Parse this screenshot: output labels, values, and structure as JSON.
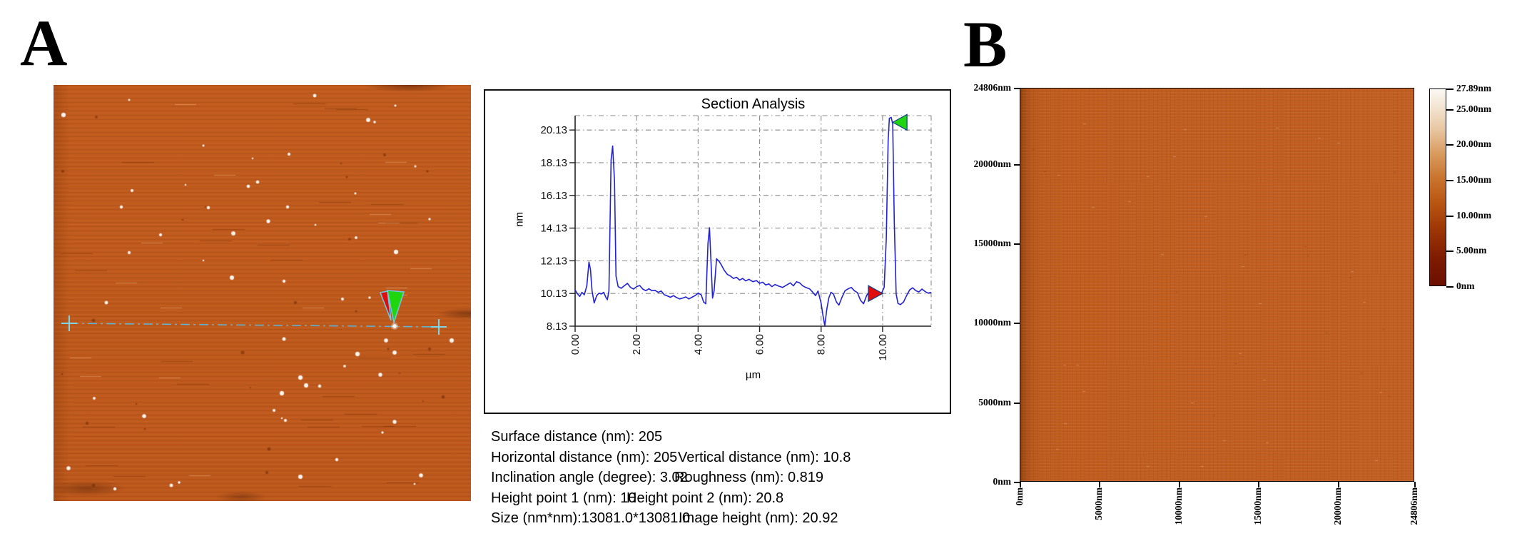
{
  "figure": {
    "panel_a_label": "A",
    "panel_b_label": "B"
  },
  "section_analysis": {
    "title": "Section Analysis",
    "ylabel": "nm",
    "xlabel": "µm",
    "y_tick_labels": [
      "20.13",
      "18.13",
      "16.13",
      "14.13",
      "12.13",
      "10.13",
      "8.13"
    ],
    "x_tick_labels": [
      "0.00",
      "2.00",
      "4.00",
      "6.00",
      "8.00",
      "10.00"
    ]
  },
  "chart_data": {
    "type": "line",
    "title": "Section Analysis",
    "xlabel": "µm",
    "ylabel": "nm",
    "xlim": [
      0,
      11.58
    ],
    "ylim": [
      8.13,
      21.01
    ],
    "x_ticks": [
      0,
      2,
      4,
      6,
      8,
      10
    ],
    "y_ticks": [
      8.13,
      10.13,
      12.13,
      14.13,
      16.13,
      18.13,
      20.13
    ],
    "grid": "dash-dot",
    "legend": "none",
    "series": [
      {
        "name": "height-profile",
        "color": "#2121d6",
        "points": [
          [
            0,
            10.35
          ],
          [
            0.08,
            10.1
          ],
          [
            0.15,
            9.95
          ],
          [
            0.22,
            10.2
          ],
          [
            0.3,
            10.05
          ],
          [
            0.38,
            10.6
          ],
          [
            0.45,
            12.05
          ],
          [
            0.5,
            11.6
          ],
          [
            0.55,
            10.3
          ],
          [
            0.62,
            9.55
          ],
          [
            0.7,
            10.0
          ],
          [
            0.78,
            10.15
          ],
          [
            0.85,
            10.1
          ],
          [
            0.93,
            10.2
          ],
          [
            1.0,
            9.9
          ],
          [
            1.05,
            9.75
          ],
          [
            1.1,
            10.3
          ],
          [
            1.17,
            18.3
          ],
          [
            1.22,
            19.15
          ],
          [
            1.28,
            17.0
          ],
          [
            1.33,
            11.2
          ],
          [
            1.4,
            10.55
          ],
          [
            1.5,
            10.45
          ],
          [
            1.6,
            10.6
          ],
          [
            1.7,
            10.75
          ],
          [
            1.8,
            10.5
          ],
          [
            1.9,
            10.4
          ],
          [
            2.0,
            10.55
          ],
          [
            2.1,
            10.62
          ],
          [
            2.2,
            10.4
          ],
          [
            2.3,
            10.3
          ],
          [
            2.4,
            10.42
          ],
          [
            2.5,
            10.3
          ],
          [
            2.6,
            10.32
          ],
          [
            2.7,
            10.2
          ],
          [
            2.8,
            10.28
          ],
          [
            2.9,
            10.05
          ],
          [
            3.0,
            9.98
          ],
          [
            3.1,
            9.9
          ],
          [
            3.2,
            10.0
          ],
          [
            3.3,
            9.88
          ],
          [
            3.4,
            9.8
          ],
          [
            3.5,
            9.85
          ],
          [
            3.6,
            9.92
          ],
          [
            3.7,
            9.8
          ],
          [
            3.8,
            9.9
          ],
          [
            3.9,
            10.0
          ],
          [
            4.0,
            10.15
          ],
          [
            4.1,
            10.05
          ],
          [
            4.18,
            9.6
          ],
          [
            4.25,
            9.5
          ],
          [
            4.32,
            13.2
          ],
          [
            4.37,
            14.15
          ],
          [
            4.42,
            12.0
          ],
          [
            4.47,
            9.85
          ],
          [
            4.52,
            10.3
          ],
          [
            4.6,
            12.25
          ],
          [
            4.68,
            12.1
          ],
          [
            4.75,
            11.9
          ],
          [
            4.85,
            11.55
          ],
          [
            4.95,
            11.3
          ],
          [
            5.05,
            11.2
          ],
          [
            5.15,
            11.05
          ],
          [
            5.25,
            11.12
          ],
          [
            5.35,
            10.95
          ],
          [
            5.45,
            11.05
          ],
          [
            5.55,
            10.9
          ],
          [
            5.65,
            11.0
          ],
          [
            5.78,
            10.85
          ],
          [
            5.9,
            10.92
          ],
          [
            6.0,
            10.75
          ],
          [
            6.1,
            10.82
          ],
          [
            6.2,
            10.65
          ],
          [
            6.3,
            10.72
          ],
          [
            6.4,
            10.55
          ],
          [
            6.5,
            10.68
          ],
          [
            6.62,
            10.58
          ],
          [
            6.75,
            10.5
          ],
          [
            6.88,
            10.65
          ],
          [
            7.0,
            10.78
          ],
          [
            7.1,
            10.6
          ],
          [
            7.2,
            10.85
          ],
          [
            7.3,
            10.78
          ],
          [
            7.4,
            10.6
          ],
          [
            7.5,
            10.5
          ],
          [
            7.62,
            10.42
          ],
          [
            7.72,
            10.22
          ],
          [
            7.82,
            10.0
          ],
          [
            7.9,
            10.28
          ],
          [
            8.0,
            9.55
          ],
          [
            8.06,
            8.8
          ],
          [
            8.12,
            8.15
          ],
          [
            8.18,
            9.1
          ],
          [
            8.25,
            9.85
          ],
          [
            8.32,
            10.2
          ],
          [
            8.4,
            10.1
          ],
          [
            8.5,
            9.6
          ],
          [
            8.58,
            9.42
          ],
          [
            8.68,
            9.9
          ],
          [
            8.78,
            10.3
          ],
          [
            8.88,
            10.42
          ],
          [
            8.98,
            10.5
          ],
          [
            9.08,
            10.3
          ],
          [
            9.18,
            10.18
          ],
          [
            9.28,
            9.72
          ],
          [
            9.38,
            9.5
          ],
          [
            9.48,
            10.0
          ],
          [
            9.58,
            10.3
          ],
          [
            9.68,
            10.42
          ],
          [
            9.78,
            10.22
          ],
          [
            9.88,
            10.1
          ],
          [
            9.98,
            10.2
          ],
          [
            10.05,
            10.5
          ],
          [
            10.12,
            13.5
          ],
          [
            10.18,
            19.5
          ],
          [
            10.22,
            20.85
          ],
          [
            10.28,
            20.9
          ],
          [
            10.33,
            20.5
          ],
          [
            10.38,
            14.5
          ],
          [
            10.44,
            10.1
          ],
          [
            10.5,
            9.52
          ],
          [
            10.58,
            9.45
          ],
          [
            10.68,
            9.6
          ],
          [
            10.78,
            10.0
          ],
          [
            10.88,
            10.35
          ],
          [
            10.98,
            10.48
          ],
          [
            11.08,
            10.3
          ],
          [
            11.18,
            10.22
          ],
          [
            11.28,
            10.4
          ],
          [
            11.38,
            10.25
          ],
          [
            11.48,
            10.15
          ],
          [
            11.58,
            10.2
          ]
        ]
      }
    ],
    "cursors": [
      {
        "name": "red-cursor",
        "x": 10.0,
        "y": 10.13,
        "direction": "right",
        "color": "#e00d0d"
      },
      {
        "name": "green-cursor",
        "x": 10.33,
        "y": 20.6,
        "direction": "left",
        "color": "#1fd60e"
      }
    ]
  },
  "measurements": {
    "lines": [
      {
        "col1": "Surface distance (nm): 205",
        "col2": ""
      },
      {
        "col1": "Horizontal distance (nm): 205",
        "col2": "Vertical distance (nm): 10.8"
      },
      {
        "col1": "Inclination angle (degree): 3.02",
        "col2": "Roughness (nm): 0.819"
      },
      {
        "col1": "Height point 1 (nm): 10",
        "col2": "Height point 2 (nm): 20.8"
      },
      {
        "col1": "Size (nm*nm):13081.0*13081.0",
        "col2": "Image height (nm): 20.92"
      }
    ]
  },
  "panel_b": {
    "axis_max": 24806,
    "y_ticks": [
      {
        "label": "24806nm",
        "value": 24806
      },
      {
        "label": "20000nm",
        "value": 20000
      },
      {
        "label": "15000nm",
        "value": 15000
      },
      {
        "label": "10000nm",
        "value": 10000
      },
      {
        "label": "5000nm",
        "value": 5000
      },
      {
        "label": "0nm",
        "value": 0
      }
    ],
    "x_ticks": [
      {
        "label": "0nm",
        "value": 0
      },
      {
        "label": "5000nm",
        "value": 5000
      },
      {
        "label": "10000nm",
        "value": 10000
      },
      {
        "label": "15000nm",
        "value": 15000
      },
      {
        "label": "20000nm",
        "value": 20000
      },
      {
        "label": "24806nm",
        "value": 24806
      }
    ],
    "colorbar": {
      "max": 27.89,
      "ticks": [
        {
          "label": "27.89nm",
          "value": 27.89
        },
        {
          "label": "25.00nm",
          "value": 25
        },
        {
          "label": "20.00nm",
          "value": 20
        },
        {
          "label": "15.00nm",
          "value": 15
        },
        {
          "label": "10.00nm",
          "value": 10
        },
        {
          "label": "5.00nm",
          "value": 5
        },
        {
          "label": "0nm",
          "value": 0
        }
      ]
    }
  },
  "colors": {
    "afm_a_base": "#c05a1d",
    "afm_b_base": "#c15c1e",
    "profile_line": "#2121d6",
    "cursor_red": "#e00d0d",
    "cursor_green": "#1fd60e",
    "section_line_cyan": "#58b8e0",
    "colorbar_top": "#fbf8f3",
    "colorbar_bottom": "#6b0f00"
  }
}
